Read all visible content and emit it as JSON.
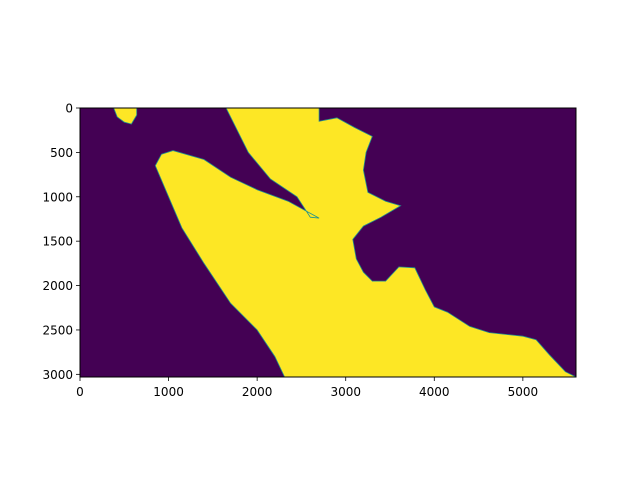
{
  "chart_data": {
    "type": "heatmap",
    "title": "",
    "xlabel": "",
    "ylabel": "",
    "xlim": [
      0,
      5600
    ],
    "ylim": [
      3030,
      0
    ],
    "x_ticks": [
      "0",
      "1000",
      "2000",
      "3000",
      "4000",
      "5000"
    ],
    "y_ticks": [
      "0",
      "500",
      "1000",
      "1500",
      "2000",
      "2500",
      "3000"
    ],
    "x_tick_values": [
      0,
      1000,
      2000,
      3000,
      4000,
      5000
    ],
    "y_tick_values": [
      0,
      500,
      1000,
      1500,
      2000,
      2500,
      3000
    ],
    "colormap": "viridis",
    "values_present": [
      0,
      1
    ],
    "colors": {
      "background_value_0": "#440154",
      "foreground_value_1": "#fde725",
      "edge": "#21918c"
    },
    "regions": [
      {
        "value": 1,
        "polygon": [
          [
            380,
            0
          ],
          [
            640,
            0
          ],
          [
            640,
            80
          ],
          [
            580,
            180
          ],
          [
            500,
            160
          ],
          [
            420,
            100
          ],
          [
            380,
            0
          ]
        ]
      },
      {
        "value": 1,
        "polygon": [
          [
            1650,
            0
          ],
          [
            2700,
            0
          ],
          [
            2700,
            150
          ],
          [
            2900,
            110
          ],
          [
            3100,
            220
          ],
          [
            3300,
            320
          ],
          [
            3230,
            500
          ],
          [
            3200,
            700
          ],
          [
            3250,
            950
          ],
          [
            3450,
            1050
          ],
          [
            3620,
            1100
          ],
          [
            3400,
            1230
          ],
          [
            3200,
            1330
          ],
          [
            3080,
            1480
          ],
          [
            3120,
            1700
          ],
          [
            3200,
            1850
          ],
          [
            3300,
            1950
          ],
          [
            3450,
            1950
          ],
          [
            3600,
            1790
          ],
          [
            3780,
            1800
          ],
          [
            3900,
            2050
          ],
          [
            4000,
            2240
          ],
          [
            4150,
            2300
          ],
          [
            4400,
            2460
          ],
          [
            4620,
            2530
          ],
          [
            5000,
            2570
          ],
          [
            5150,
            2610
          ],
          [
            5300,
            2780
          ],
          [
            5480,
            2970
          ],
          [
            5600,
            3030
          ],
          [
            2310,
            3030
          ],
          [
            2200,
            2800
          ],
          [
            2000,
            2500
          ],
          [
            1700,
            2200
          ],
          [
            1400,
            1750
          ],
          [
            1150,
            1350
          ],
          [
            1000,
            1000
          ],
          [
            850,
            650
          ],
          [
            920,
            520
          ],
          [
            1050,
            480
          ],
          [
            1400,
            580
          ],
          [
            1700,
            780
          ],
          [
            2000,
            920
          ],
          [
            2350,
            1050
          ],
          [
            2700,
            1240
          ],
          [
            2600,
            1230
          ],
          [
            2450,
            1000
          ],
          [
            2150,
            800
          ],
          [
            1900,
            500
          ],
          [
            1650,
            0
          ]
        ]
      }
    ]
  }
}
